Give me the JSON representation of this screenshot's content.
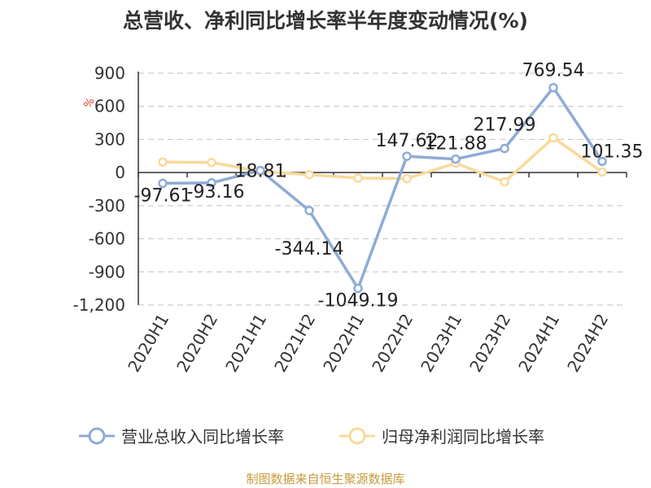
{
  "title": "总营收、净利同比增长率半年度变动情况(%)",
  "source": "制图数据来自恒生聚源数据库",
  "colors": {
    "revenue": "#8eabd6",
    "profit": "#fad99b",
    "grid": "#cccccc",
    "axis": "#333333",
    "unit": "#e53935"
  },
  "legend": [
    {
      "label": "营业总收入同比增长率",
      "color": "#8eabd6"
    },
    {
      "label": "归母净利润同比增长率",
      "color": "#fad99b"
    }
  ],
  "chart_data": {
    "type": "line",
    "title": "总营收、净利同比增长率半年度变动情况(%)",
    "ylabel": "%",
    "categories": [
      "2020H1",
      "2020H2",
      "2021H1",
      "2021H2",
      "2022H1",
      "2022H2",
      "2023H1",
      "2023H2",
      "2024H1",
      "2024H2"
    ],
    "ylim": [
      -1200,
      900
    ],
    "yticks": [
      900,
      600,
      300,
      0,
      -300,
      -600,
      -900,
      -1200
    ],
    "ytick_labels": [
      "900",
      "600",
      "300",
      "0",
      "-300",
      "-600",
      "-900",
      "-1,200"
    ],
    "grid": true,
    "legend_position": "bottom",
    "series": [
      {
        "name": "营业总收入同比增长率",
        "values": [
          -97.61,
          -93.16,
          18.81,
          -344.14,
          -1049.19,
          147.62,
          121.88,
          217.99,
          769.54,
          101.35
        ],
        "labels": [
          "-97.61",
          "-93.16",
          "18.81",
          "-344.14",
          "-1049.19",
          "147.62",
          "121.88",
          "217.99",
          "769.54",
          "101.35"
        ]
      },
      {
        "name": "归母净利润同比增长率",
        "values": [
          95,
          92,
          10,
          -20,
          -50,
          -55,
          85,
          -85,
          315,
          5
        ]
      }
    ]
  }
}
